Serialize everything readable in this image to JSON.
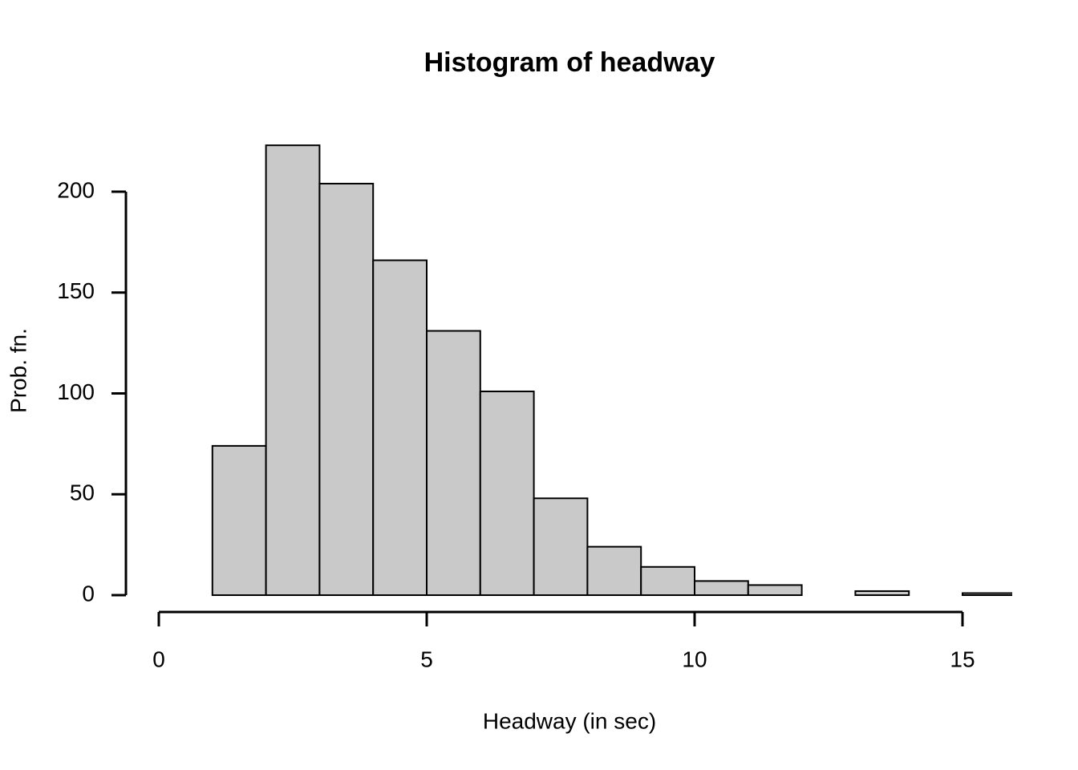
{
  "chart_data": {
    "type": "histogram",
    "title": "Histogram of headway",
    "x_label": "Headway (in sec)",
    "y_label": "Prob. fn.",
    "bins": [
      1,
      2,
      3,
      4,
      5,
      6,
      7,
      8,
      9,
      10,
      11,
      12,
      13,
      14,
      15,
      16
    ],
    "counts": [
      74,
      223,
      204,
      166,
      131,
      101,
      48,
      24,
      14,
      7,
      5,
      0,
      2,
      0,
      1
    ],
    "color": "#c9c9c9",
    "xlim": [
      0,
      15
    ],
    "xticks": [
      0,
      5,
      10,
      15
    ],
    "ylim": [
      0,
      200
    ],
    "yticks": [
      0,
      50,
      100,
      150,
      200
    ]
  }
}
